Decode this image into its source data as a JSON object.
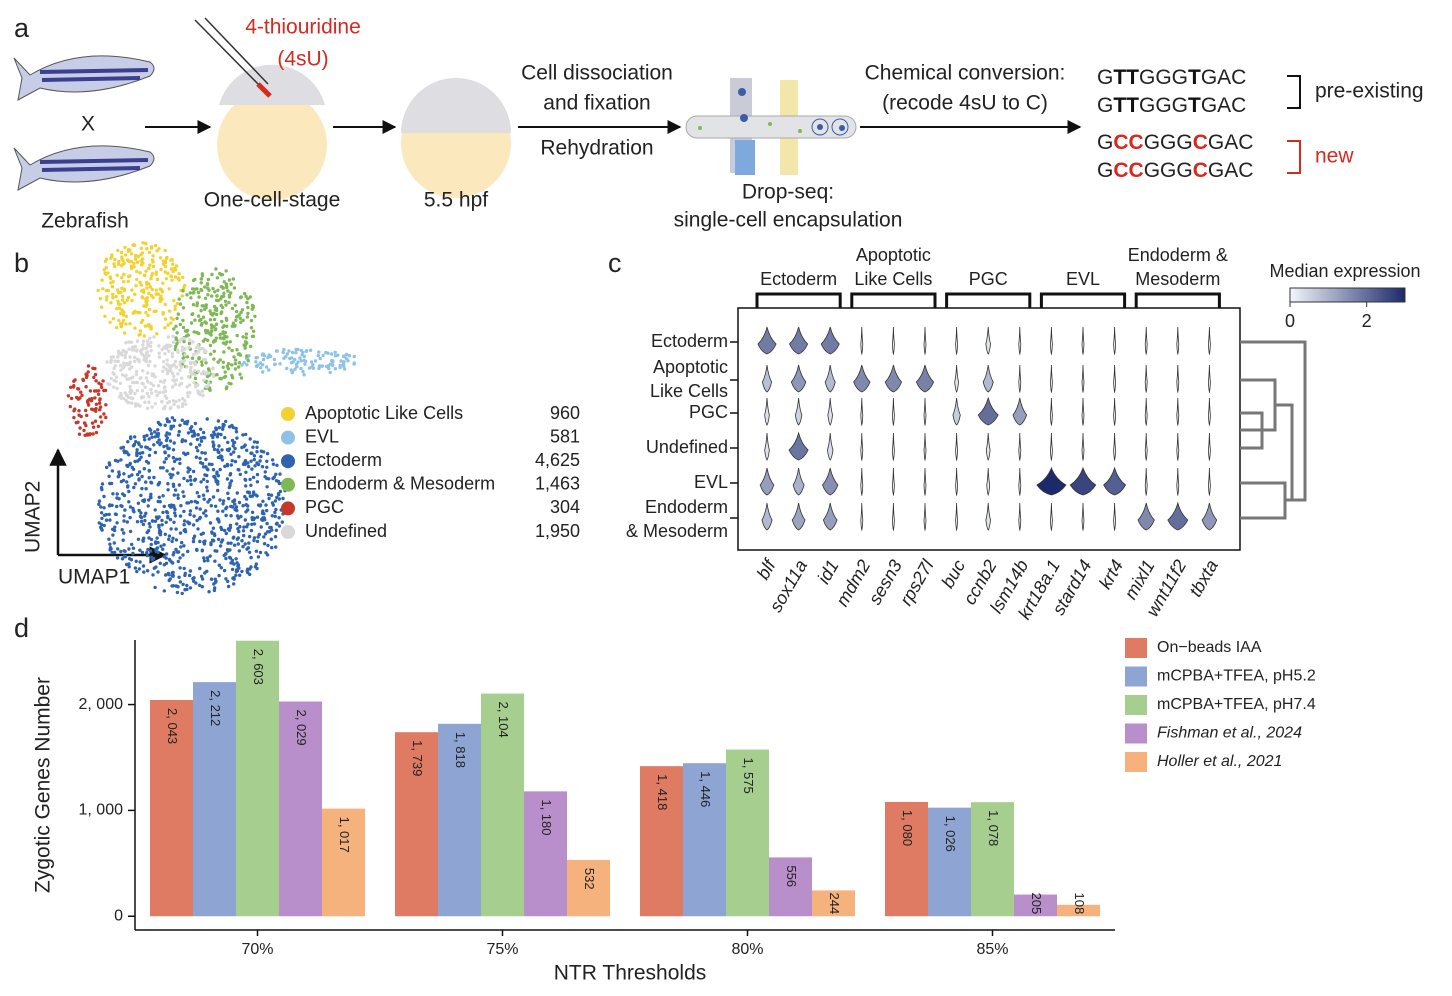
{
  "panel_a": {
    "label": "a",
    "reagent": [
      "4-thiouridine",
      "(4sU)"
    ],
    "cross": "X",
    "organism": "Zebrafish",
    "stage1": "One-cell-stage",
    "stage2": "5.5 hpf",
    "step1": [
      "Cell dissociation",
      "and fixation"
    ],
    "step2": "Rehydration",
    "dropseq": [
      "Drop-seq:",
      "single-cell encapsulation"
    ],
    "conversion": [
      "Chemical conversion:",
      "(recode 4sU to C)"
    ],
    "sequences": [
      {
        "parts": [
          "G",
          "TT",
          "GGG",
          "T",
          "GAC"
        ],
        "highlight": "#111111"
      },
      {
        "parts": [
          "G",
          "TT",
          "GGG",
          "T",
          "GAC"
        ],
        "highlight": "#111111"
      },
      {
        "parts": [
          "G",
          "CC",
          "GGG",
          "C",
          "GAC"
        ],
        "highlight": "#d42a1f"
      },
      {
        "parts": [
          "G",
          "CC",
          "GGG",
          "C",
          "GAC"
        ],
        "highlight": "#d42a1f"
      }
    ],
    "pre_existing": "pre-existing",
    "new": "new"
  },
  "panel_b": {
    "label": "b",
    "xlabel": "UMAP1",
    "ylabel": "UMAP2",
    "clusters": [
      {
        "name": "Apoptotic Like Cells",
        "color": "#f2d230",
        "count": "960"
      },
      {
        "name": "EVL",
        "color": "#8ec3e6",
        "count": "581"
      },
      {
        "name": "Ectoderm",
        "color": "#2e63b0",
        "count": "4,625"
      },
      {
        "name": "Endoderm & Mesoderm",
        "color": "#7fb955",
        "count": "1,463"
      },
      {
        "name": "PGC",
        "color": "#c7382a",
        "count": "304"
      },
      {
        "name": "Undefined",
        "color": "#d9d9d9",
        "count": "1,950"
      }
    ]
  },
  "panel_c": {
    "label": "c",
    "groups": [
      {
        "name": [
          "Ectoderm"
        ],
        "genes": [
          "blf",
          "sox11a",
          "id1"
        ]
      },
      {
        "name": [
          "Apoptotic",
          "Like Cells"
        ],
        "genes": [
          "mdm2",
          "sesn3",
          "rps27l"
        ]
      },
      {
        "name": [
          "PGC"
        ],
        "genes": [
          "buc",
          "ccnb2",
          "lsm14b"
        ]
      },
      {
        "name": [
          "EVL"
        ],
        "genes": [
          "krt18a.1",
          "stard14",
          "krt4"
        ]
      },
      {
        "name": [
          "Endoderm &",
          "Mesoderm"
        ],
        "genes": [
          "mixl1",
          "wnt11f2",
          "tbxta"
        ]
      }
    ],
    "rows": [
      [
        "Ectoderm"
      ],
      [
        "Apoptotic",
        "Like Cells"
      ],
      [
        "PGC"
      ],
      [
        "Undefined"
      ],
      [
        "EVL"
      ],
      [
        "Endoderm",
        "& Mesoderm"
      ]
    ],
    "median_expression": [
      [
        1.8,
        1.8,
        1.8,
        0,
        0,
        0,
        0,
        0.3,
        0,
        0,
        0,
        0,
        0,
        0,
        0
      ],
      [
        0.8,
        1.4,
        0.9,
        1.6,
        1.6,
        1.7,
        0.2,
        0.9,
        0,
        0,
        0,
        0,
        0,
        0,
        0
      ],
      [
        0.3,
        0.5,
        0.3,
        0,
        0,
        0,
        0.6,
        2.0,
        1.3,
        0,
        0,
        0,
        0,
        0,
        0
      ],
      [
        0.3,
        1.9,
        0.4,
        0,
        0,
        0,
        0,
        0.2,
        0,
        0,
        0,
        0,
        0,
        0,
        0
      ],
      [
        1.3,
        1.0,
        1.5,
        0,
        0,
        0,
        0,
        0.1,
        0,
        3.0,
        2.6,
        2.2,
        0,
        0,
        0
      ],
      [
        0.9,
        1.2,
        1.3,
        0,
        0,
        0,
        0,
        0.3,
        0,
        0,
        0,
        0,
        1.6,
        2.0,
        1.4
      ]
    ],
    "colorbar": {
      "title": "Median expression",
      "lim": [
        0,
        3
      ],
      "ticks": [
        0,
        2
      ],
      "colors": [
        "#f2f6fb",
        "#1b2a6b"
      ]
    }
  },
  "chart_data": {
    "type": "bar",
    "label": "d",
    "xlabel": "NTR Thresholds",
    "ylabel": "Zygotic Genes Number",
    "categories": [
      "70%",
      "75%",
      "80%",
      "85%"
    ],
    "series": [
      {
        "name": "On−beads IAA",
        "color": "#e07b63",
        "values": [
          2043,
          1739,
          1418,
          1080
        ],
        "value_labels": [
          "2, 043",
          "1, 739",
          "1, 418",
          "1, 080"
        ]
      },
      {
        "name": "mCPBA+TFEA, pH5.2",
        "color": "#8ea4d2",
        "values": [
          2212,
          1818,
          1446,
          1026
        ],
        "value_labels": [
          "2, 212",
          "1, 818",
          "1, 446",
          "1, 026"
        ]
      },
      {
        "name": "mCPBA+TFEA, pH7.4",
        "color": "#a6cf8f",
        "values": [
          2603,
          2104,
          1575,
          1078
        ],
        "value_labels": [
          "2, 603",
          "2, 104",
          "1, 575",
          "1, 078"
        ]
      },
      {
        "name": "Fishman et al., 2024",
        "color": "#b98fcb",
        "values": [
          2029,
          1180,
          556,
          205
        ],
        "value_labels": [
          "2, 029",
          "1, 180",
          "556",
          "205"
        ]
      },
      {
        "name": "Holler et al., 2021",
        "color": "#f5b27d",
        "values": [
          1017,
          532,
          244,
          108
        ],
        "value_labels": [
          "1, 017",
          "532",
          "244",
          "108"
        ]
      }
    ],
    "ylim": [
      -130,
      2610
    ],
    "yticks": [
      0,
      {
        "value": 1000,
        "label": "1, 000"
      },
      {
        "value": 2000,
        "label": "2, 000"
      }
    ],
    "legend": "upper right"
  }
}
